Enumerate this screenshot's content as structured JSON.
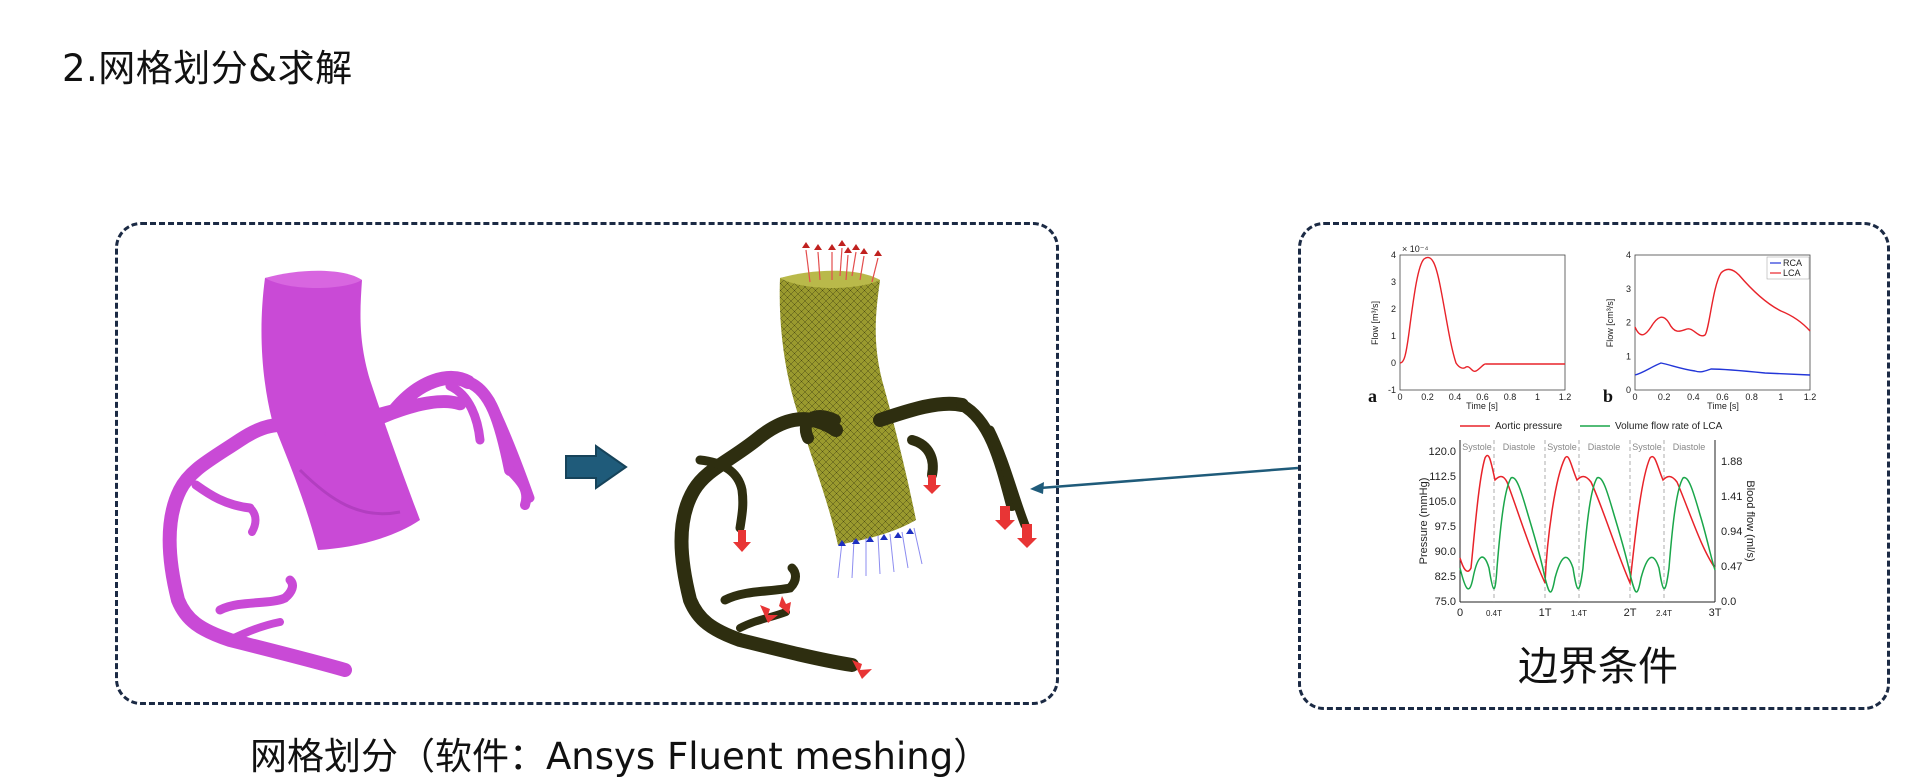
{
  "page": {
    "title": "2.网格划分&求解",
    "left_caption": "网格划分（软件：Ansys Fluent meshing）",
    "right_caption": "边界条件"
  },
  "figure_a": {
    "label": "a",
    "ylabel": "Flow [m³/s]",
    "xlabel": "Time [s]",
    "exponent": "× 10⁻⁴",
    "x_ticks": [
      "0",
      "0.2",
      "0.4",
      "0.6",
      "0.8",
      "1",
      "1.2"
    ],
    "y_ticks": [
      "-1",
      "0",
      "1",
      "2",
      "3",
      "4"
    ]
  },
  "figure_b": {
    "label": "b",
    "ylabel": "Flow [cm³/s]",
    "xlabel": "Time [s]",
    "x_ticks": [
      "0",
      "0.2",
      "0.4",
      "0.6",
      "0.8",
      "1",
      "1.2"
    ],
    "y_ticks": [
      "0",
      "1",
      "2",
      "3",
      "4"
    ],
    "legend": [
      "RCA",
      "LCA"
    ]
  },
  "figure_c": {
    "legend": [
      "Aortic pressure",
      "Volume flow rate of LCA"
    ],
    "ylabel_left": "Pressure (mmHg)",
    "ylabel_right": "Blood flow (ml/s)",
    "left_ticks": [
      "75.0",
      "82.5",
      "90.0",
      "97.5",
      "105.0",
      "112.5",
      "120.0"
    ],
    "right_ticks": [
      "0.0",
      "0.47",
      "0.94",
      "1.41",
      "1.88"
    ],
    "x_ticks": [
      "0",
      "0.4T",
      "1T",
      "1.4T",
      "2T",
      "2.4T",
      "3T"
    ],
    "phase_labels": [
      "Systole",
      "Diastole",
      "Systole",
      "Diastole",
      "Systole",
      "Diastole"
    ]
  },
  "colors": {
    "vessel": "#c94ad6",
    "mesh": "#8f8f2a",
    "arrow": "#1f5b7a",
    "red_line": "#e8232a",
    "green_line": "#1aa64a",
    "blue_line": "#2336d8",
    "panel_border": "#1b2a44"
  }
}
